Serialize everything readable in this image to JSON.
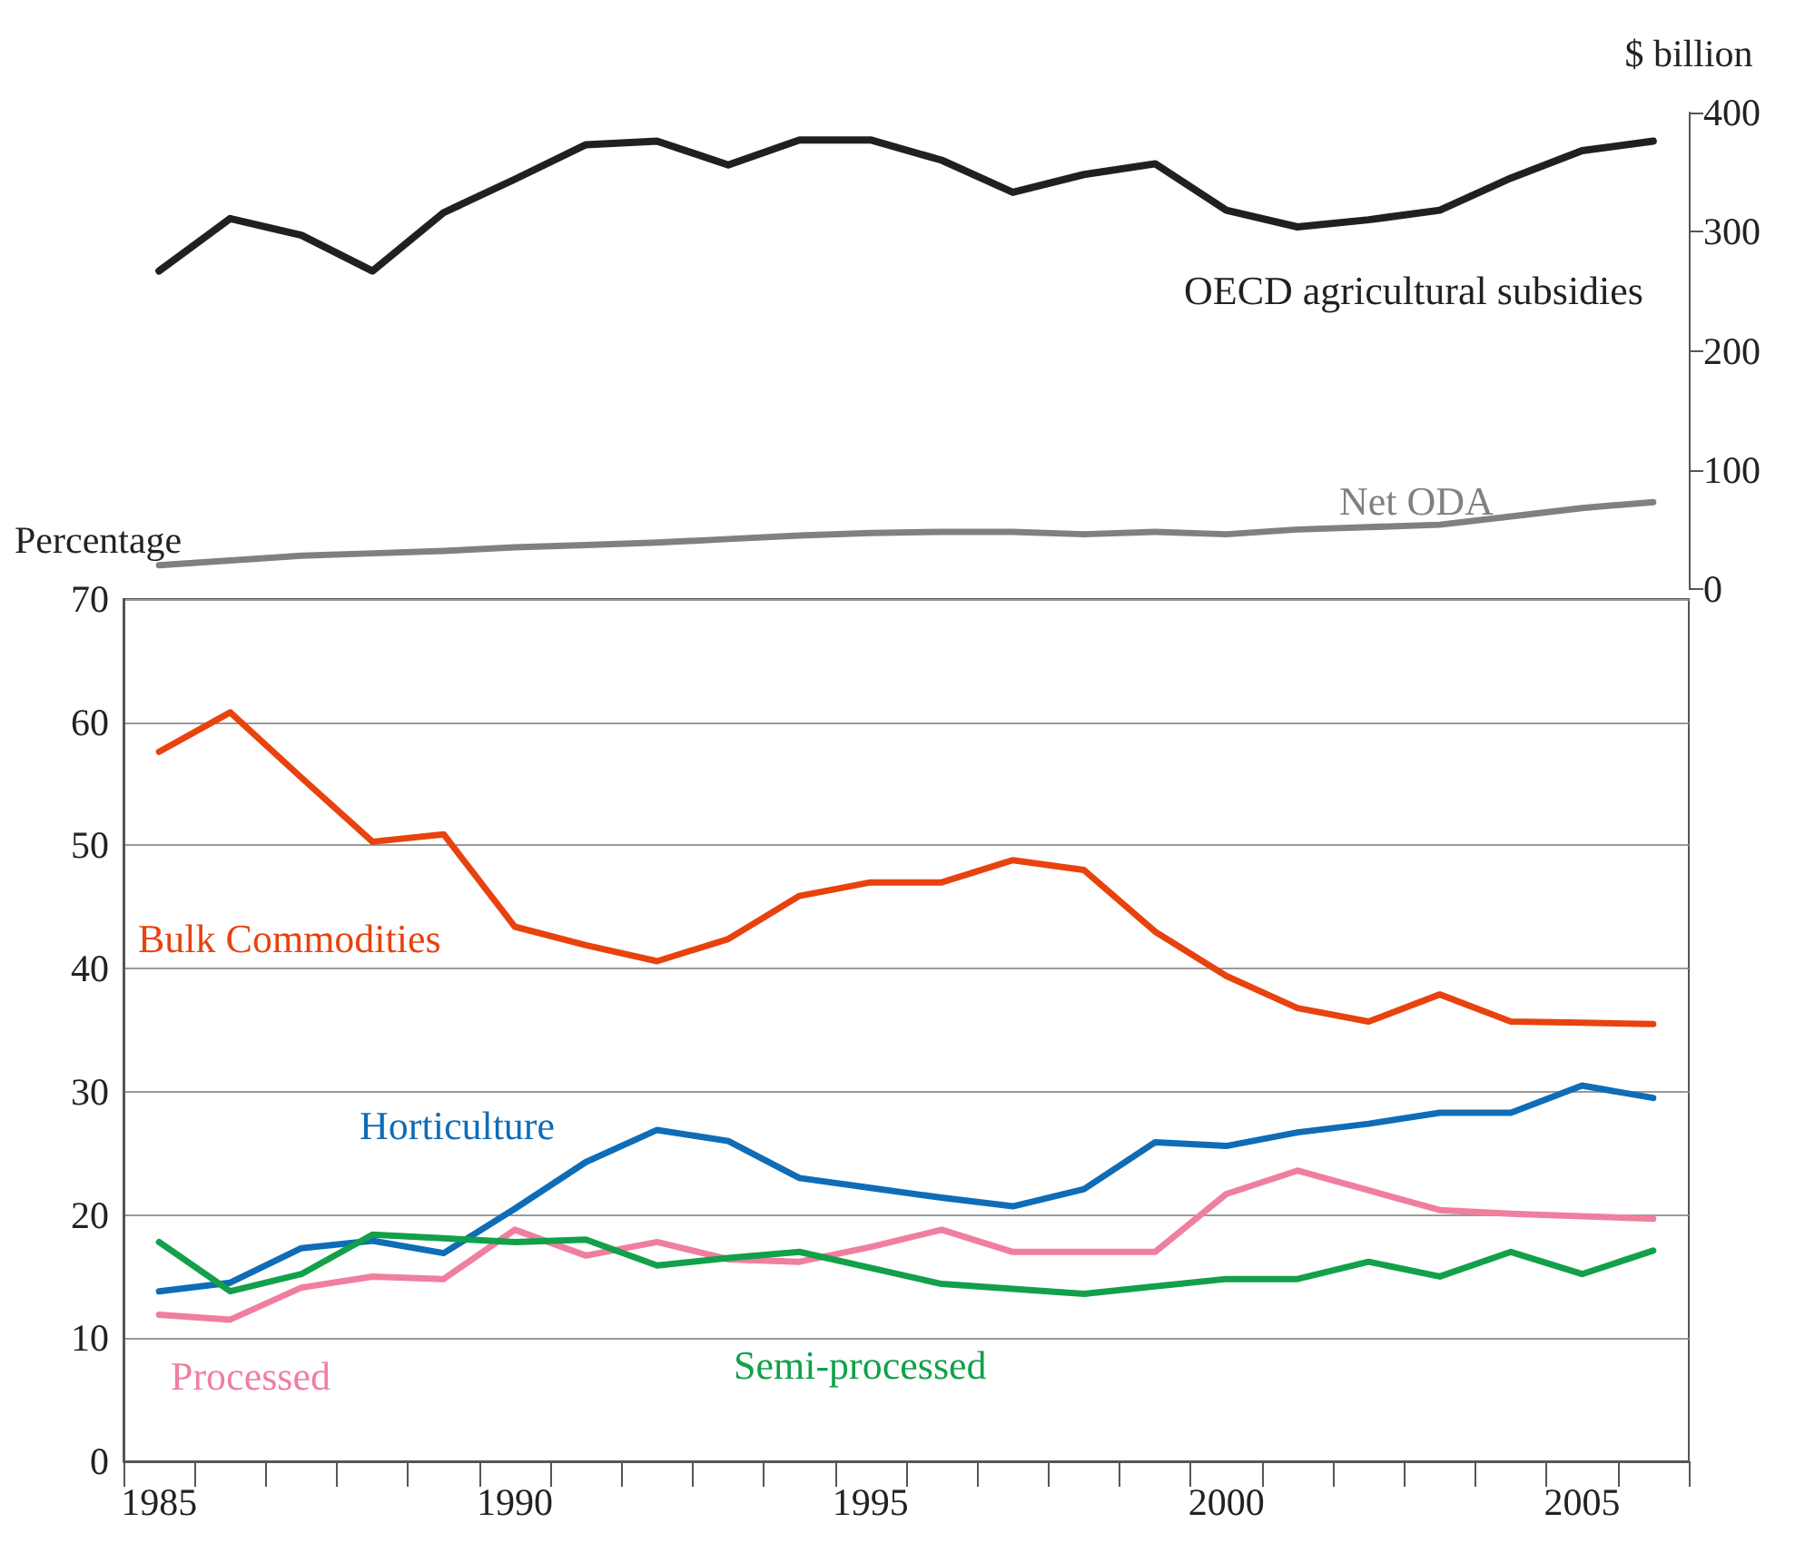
{
  "chart_data": [
    {
      "type": "line",
      "ylabel": "$ billion",
      "categories": [
        "1985",
        null,
        null,
        null,
        null,
        "1990",
        null,
        null,
        null,
        null,
        "1995",
        null,
        null,
        null,
        null,
        "2000",
        null,
        null,
        null,
        null,
        "2005",
        null
      ],
      "ylim": [
        0,
        400
      ],
      "yticks": [
        0,
        100,
        200,
        300,
        400
      ],
      "tick_labels": "y",
      "grid": false,
      "series": [
        {
          "name": "OECD agricultural subsidies",
          "color": "#231f20",
          "values": [
            267,
            311,
            297,
            267,
            316,
            344,
            373,
            376,
            356,
            377,
            377,
            360,
            333,
            348,
            357,
            318,
            304,
            310,
            318,
            345,
            368,
            376
          ]
        },
        {
          "name": "Net ODA",
          "color": "#808080",
          "values": [
            20,
            24,
            28,
            30,
            32,
            35,
            37,
            39,
            42,
            45,
            47,
            48,
            48,
            46,
            48,
            46,
            50,
            52,
            54,
            61,
            68,
            73
          ]
        }
      ]
    },
    {
      "type": "line",
      "ylabel": "Percentage",
      "categories": [
        "1985",
        null,
        null,
        null,
        null,
        "1990",
        null,
        null,
        null,
        null,
        "1995",
        null,
        null,
        null,
        null,
        "2000",
        null,
        null,
        null,
        null,
        "2005",
        null
      ],
      "ylim": [
        0,
        70
      ],
      "yticks": [
        0,
        10,
        20,
        30,
        40,
        50,
        60,
        70
      ],
      "grid": "y",
      "series": [
        {
          "name": "Bulk Commodities",
          "color": "#e8420e",
          "values": [
            57.6,
            60.8,
            55.5,
            50.3,
            50.9,
            43.4,
            41.9,
            40.6,
            42.4,
            45.9,
            47.0,
            47.0,
            48.8,
            48.0,
            43.0,
            39.4,
            36.8,
            35.7,
            37.9,
            35.7,
            35.6,
            35.5
          ]
        },
        {
          "name": "Horticulture",
          "color": "#0f6cb6",
          "values": [
            13.8,
            14.5,
            17.3,
            17.9,
            16.9,
            20.5,
            24.3,
            26.9,
            26.0,
            23.0,
            22.2,
            21.4,
            20.7,
            22.1,
            25.9,
            25.6,
            26.7,
            27.4,
            28.3,
            28.3,
            30.5,
            29.5
          ]
        },
        {
          "name": "Processed",
          "color": "#f07f9f",
          "values": [
            11.9,
            11.5,
            14.1,
            15.0,
            14.8,
            18.8,
            16.7,
            17.8,
            16.4,
            16.2,
            17.4,
            18.8,
            17.0,
            17.0,
            17.0,
            21.7,
            23.6,
            22.0,
            20.4,
            20.1,
            19.9,
            19.7
          ]
        },
        {
          "name": "Semi-processed",
          "color": "#12a04a",
          "values": [
            17.8,
            13.8,
            15.2,
            18.4,
            18.1,
            17.8,
            18.0,
            15.9,
            16.5,
            17.0,
            15.7,
            14.4,
            14.0,
            13.6,
            14.2,
            14.8,
            14.8,
            16.2,
            15.0,
            17.0,
            15.2,
            17.1
          ]
        }
      ]
    }
  ]
}
